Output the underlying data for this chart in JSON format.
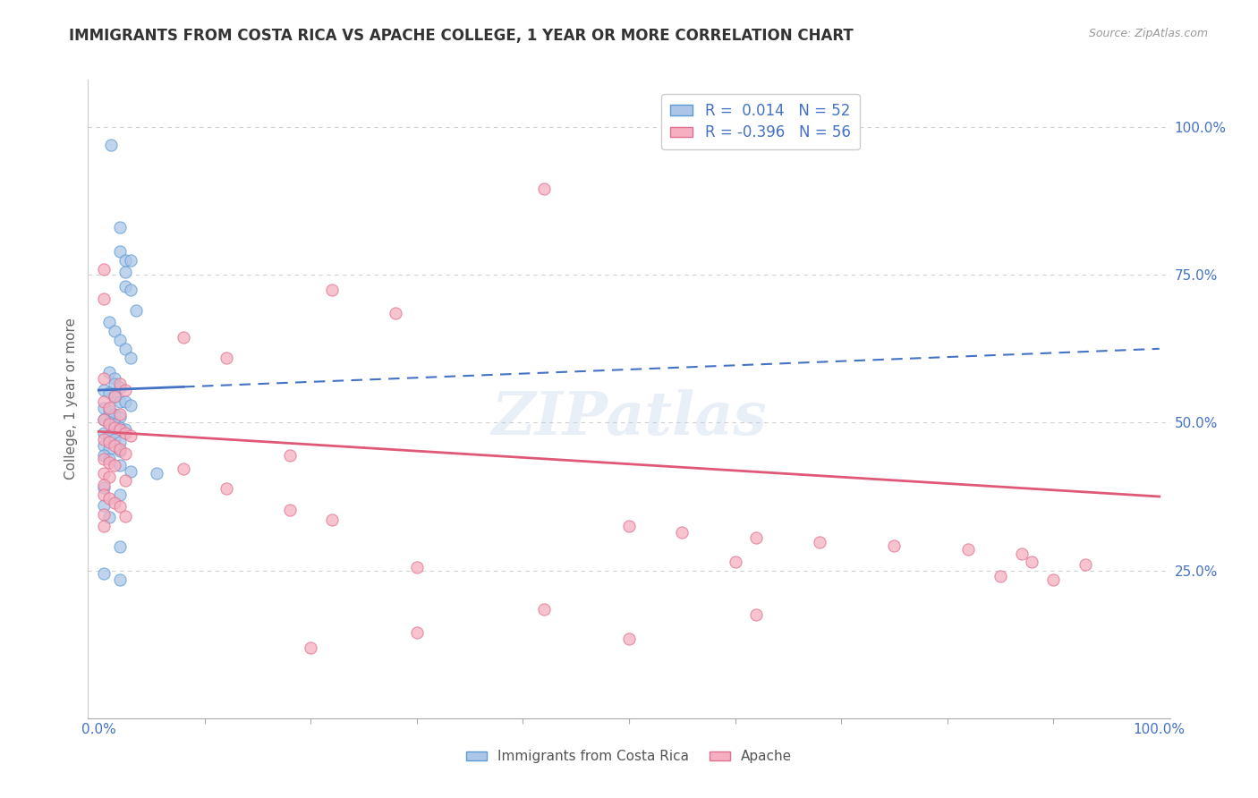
{
  "title": "IMMIGRANTS FROM COSTA RICA VS APACHE COLLEGE, 1 YEAR OR MORE CORRELATION CHART",
  "source_text": "Source: ZipAtlas.com",
  "ylabel": "College, 1 year or more",
  "xlabel": "",
  "xlim": [
    0.0,
    1.0
  ],
  "ylim": [
    0.0,
    1.05
  ],
  "xtick_labels": [
    "0.0%",
    "100.0%"
  ],
  "ytick_labels": [
    "25.0%",
    "50.0%",
    "75.0%",
    "100.0%"
  ],
  "ytick_positions": [
    0.25,
    0.5,
    0.75,
    1.0
  ],
  "xtick_minor_positions": [
    0.0,
    0.1,
    0.2,
    0.3,
    0.4,
    0.5,
    0.6,
    0.7,
    0.8,
    0.9,
    1.0
  ],
  "watermark": "ZIPatlas",
  "blue_color": "#adc6e8",
  "pink_color": "#f5afc0",
  "blue_edge_color": "#5b9bd5",
  "pink_edge_color": "#e07090",
  "blue_line_color": "#4472c4",
  "pink_line_color": "#e05878",
  "blue_line_solid_end": 0.08,
  "blue_line_y_at_0": 0.555,
  "blue_line_y_at_1": 0.625,
  "pink_line_y_at_0": 0.485,
  "pink_line_y_at_1": 0.375,
  "blue_scatter": [
    [
      0.012,
      0.97
    ],
    [
      0.02,
      0.83
    ],
    [
      0.02,
      0.79
    ],
    [
      0.025,
      0.775
    ],
    [
      0.03,
      0.775
    ],
    [
      0.025,
      0.755
    ],
    [
      0.025,
      0.73
    ],
    [
      0.03,
      0.725
    ],
    [
      0.035,
      0.69
    ],
    [
      0.01,
      0.67
    ],
    [
      0.015,
      0.655
    ],
    [
      0.02,
      0.64
    ],
    [
      0.025,
      0.625
    ],
    [
      0.03,
      0.61
    ],
    [
      0.01,
      0.585
    ],
    [
      0.015,
      0.575
    ],
    [
      0.015,
      0.565
    ],
    [
      0.02,
      0.56
    ],
    [
      0.005,
      0.555
    ],
    [
      0.01,
      0.55
    ],
    [
      0.015,
      0.545
    ],
    [
      0.02,
      0.535
    ],
    [
      0.025,
      0.535
    ],
    [
      0.03,
      0.53
    ],
    [
      0.005,
      0.525
    ],
    [
      0.01,
      0.52
    ],
    [
      0.015,
      0.515
    ],
    [
      0.02,
      0.51
    ],
    [
      0.005,
      0.505
    ],
    [
      0.01,
      0.5
    ],
    [
      0.015,
      0.498
    ],
    [
      0.02,
      0.492
    ],
    [
      0.025,
      0.488
    ],
    [
      0.005,
      0.482
    ],
    [
      0.01,
      0.478
    ],
    [
      0.015,
      0.472
    ],
    [
      0.02,
      0.468
    ],
    [
      0.005,
      0.462
    ],
    [
      0.01,
      0.455
    ],
    [
      0.02,
      0.452
    ],
    [
      0.005,
      0.445
    ],
    [
      0.01,
      0.438
    ],
    [
      0.02,
      0.428
    ],
    [
      0.03,
      0.418
    ],
    [
      0.055,
      0.415
    ],
    [
      0.005,
      0.39
    ],
    [
      0.02,
      0.378
    ],
    [
      0.005,
      0.36
    ],
    [
      0.01,
      0.34
    ],
    [
      0.02,
      0.29
    ],
    [
      0.005,
      0.245
    ],
    [
      0.02,
      0.235
    ]
  ],
  "pink_scatter": [
    [
      0.42,
      0.895
    ],
    [
      0.005,
      0.76
    ],
    [
      0.22,
      0.725
    ],
    [
      0.005,
      0.71
    ],
    [
      0.28,
      0.685
    ],
    [
      0.08,
      0.645
    ],
    [
      0.12,
      0.61
    ],
    [
      0.005,
      0.575
    ],
    [
      0.02,
      0.565
    ],
    [
      0.025,
      0.555
    ],
    [
      0.015,
      0.545
    ],
    [
      0.005,
      0.535
    ],
    [
      0.01,
      0.525
    ],
    [
      0.02,
      0.515
    ],
    [
      0.005,
      0.505
    ],
    [
      0.01,
      0.498
    ],
    [
      0.015,
      0.492
    ],
    [
      0.02,
      0.488
    ],
    [
      0.025,
      0.482
    ],
    [
      0.03,
      0.478
    ],
    [
      0.005,
      0.472
    ],
    [
      0.01,
      0.468
    ],
    [
      0.015,
      0.462
    ],
    [
      0.02,
      0.455
    ],
    [
      0.025,
      0.448
    ],
    [
      0.18,
      0.445
    ],
    [
      0.005,
      0.438
    ],
    [
      0.01,
      0.432
    ],
    [
      0.015,
      0.428
    ],
    [
      0.08,
      0.422
    ],
    [
      0.005,
      0.415
    ],
    [
      0.01,
      0.408
    ],
    [
      0.025,
      0.402
    ],
    [
      0.005,
      0.395
    ],
    [
      0.12,
      0.388
    ],
    [
      0.005,
      0.378
    ],
    [
      0.01,
      0.372
    ],
    [
      0.015,
      0.365
    ],
    [
      0.02,
      0.358
    ],
    [
      0.18,
      0.352
    ],
    [
      0.005,
      0.345
    ],
    [
      0.025,
      0.342
    ],
    [
      0.22,
      0.335
    ],
    [
      0.005,
      0.325
    ],
    [
      0.5,
      0.325
    ],
    [
      0.55,
      0.315
    ],
    [
      0.62,
      0.305
    ],
    [
      0.68,
      0.298
    ],
    [
      0.75,
      0.292
    ],
    [
      0.82,
      0.285
    ],
    [
      0.87,
      0.278
    ],
    [
      0.6,
      0.265
    ],
    [
      0.88,
      0.265
    ],
    [
      0.93,
      0.26
    ],
    [
      0.3,
      0.255
    ],
    [
      0.85,
      0.24
    ],
    [
      0.9,
      0.235
    ],
    [
      0.42,
      0.185
    ],
    [
      0.62,
      0.175
    ],
    [
      0.3,
      0.145
    ],
    [
      0.5,
      0.135
    ],
    [
      0.2,
      0.12
    ]
  ],
  "title_color": "#333333",
  "axis_label_color": "#666666",
  "tick_label_color": "#4472c4",
  "grid_color": "#d0d0d0",
  "background_color": "#ffffff",
  "plot_bg_color": "#ffffff"
}
